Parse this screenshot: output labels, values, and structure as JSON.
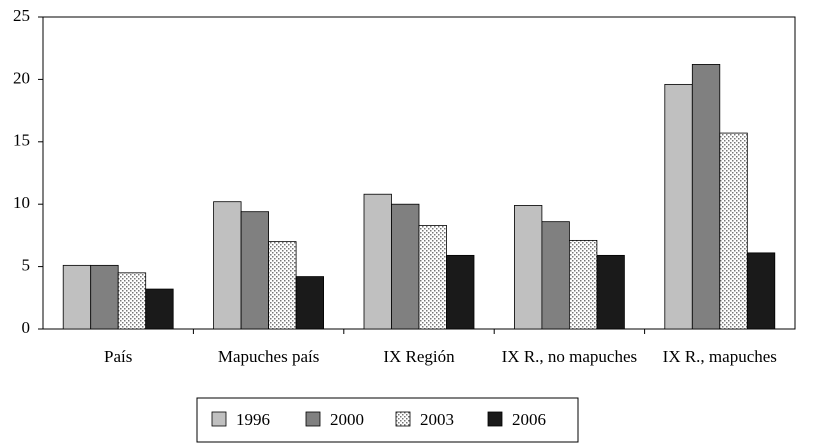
{
  "chart_data": {
    "type": "bar",
    "categories": [
      "País",
      "Mapuches país",
      "IX Región",
      "IX R., no mapuches",
      "IX R., mapuches"
    ],
    "series": [
      {
        "name": "1996",
        "color": "#c0c0c0",
        "values": [
          5.1,
          10.2,
          10.8,
          9.9,
          19.6
        ]
      },
      {
        "name": "2000",
        "color": "#808080",
        "values": [
          5.1,
          9.4,
          10.0,
          8.6,
          21.2
        ]
      },
      {
        "name": "2003",
        "color": "#ffffff",
        "pattern": "dotted",
        "values": [
          4.5,
          7.0,
          8.3,
          7.1,
          15.7
        ]
      },
      {
        "name": "2006",
        "color": "#1a1a1a",
        "values": [
          3.2,
          4.2,
          5.9,
          5.9,
          6.1
        ]
      }
    ],
    "ylim": [
      0,
      25
    ],
    "yticks": [
      0,
      5,
      10,
      15,
      20,
      25
    ],
    "grid": false,
    "legend": "bottom"
  }
}
